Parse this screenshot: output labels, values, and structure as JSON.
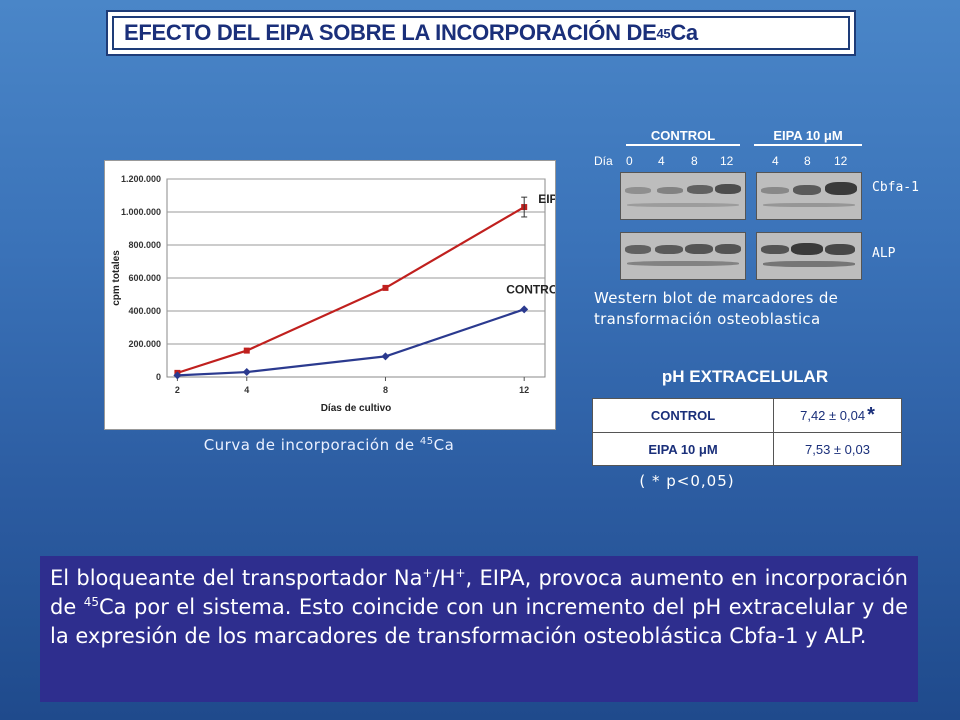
{
  "title": {
    "text_main": "EFECTO DEL EIPA SOBRE LA INCORPORACIÓN DE ",
    "isotope_mass": "45",
    "isotope_symbol": "Ca"
  },
  "chart": {
    "caption_pre": "Curva de incorporación de ",
    "caption_sup": "45",
    "caption_post": "Ca"
  },
  "chart_data": {
    "type": "line",
    "title": "",
    "xlabel": "Días de cultivo",
    "ylabel": "cpm totales",
    "x": [
      2,
      4,
      8,
      12
    ],
    "x_ticks": [
      "2",
      "4",
      "8",
      "12"
    ],
    "y_ticks": [
      "0",
      "200.000",
      "400.000",
      "600.000",
      "800.000",
      "1.000.000",
      "1.200.000"
    ],
    "ylim": [
      0,
      1200000
    ],
    "grid": true,
    "series": [
      {
        "name": "EIPA",
        "values": [
          25000,
          160000,
          540000,
          1030000
        ],
        "color": "#c0201e",
        "error_last": 60000
      },
      {
        "name": "CONTROL",
        "values": [
          10000,
          30000,
          125000,
          410000
        ],
        "color": "#2b3a8f"
      }
    ]
  },
  "western_blot": {
    "group_control": "CONTROL",
    "group_eipa": "EIPA 10 μM",
    "day_label": "Día",
    "lanes_control": [
      "0",
      "4",
      "8",
      "12"
    ],
    "lanes_eipa": [
      "4",
      "8",
      "12"
    ],
    "marker_1": "Cbfa-1",
    "marker_2": "ALP",
    "caption_line1": "Western blot de marcadores de",
    "caption_line2": "transformación osteoblastica"
  },
  "ph": {
    "title": "pH EXTRACELULAR",
    "rows": [
      {
        "name": "CONTROL",
        "value": "7,42 ± 0,04",
        "star": "*"
      },
      {
        "name": "EIPA 10 μM",
        "value": "7,53 ± 0,03",
        "star": ""
      }
    ],
    "note": "( * p<0,05)"
  },
  "summary": {
    "p1": "El bloqueante del transportador Na",
    "sup1": "+",
    "p2": "/H",
    "sup2": "+",
    "p3": ", EIPA, provoca aumento en incorporación de ",
    "sup3": "45",
    "p4": "Ca por el sistema. Esto coincide con un incremento del pH extracelular y de la expresión de los marcadores de transformación osteoblástica Cbfa-1 y ALP."
  }
}
